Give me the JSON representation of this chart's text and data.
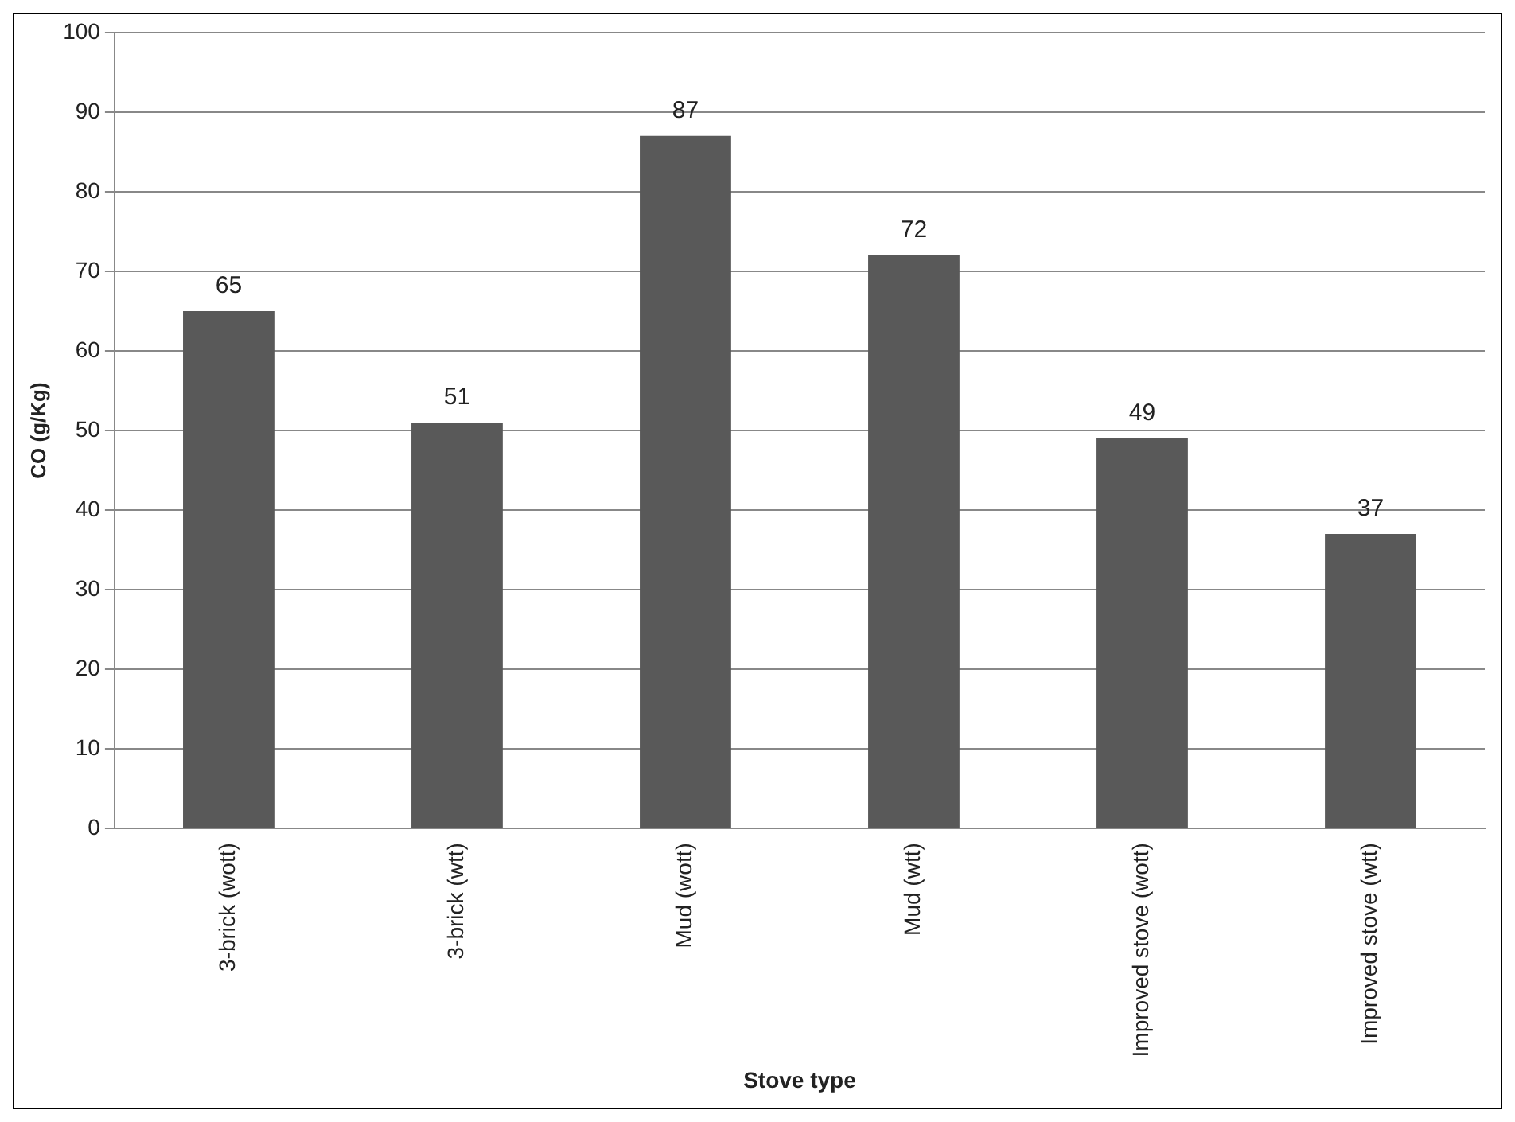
{
  "chart_data": {
    "type": "bar",
    "xlabel": "Stove type",
    "ylabel": "CO (g/Kg)",
    "categories": [
      "3-brick (wott)",
      "3-brick (wtt)",
      "Mud (wott)",
      "Mud (wtt)",
      "Improved stove (wott)",
      "Improved stove (wtt)"
    ],
    "values": [
      65,
      51,
      87,
      72,
      49,
      37
    ],
    "color": "#595959",
    "ylim": [
      0,
      100
    ],
    "yticks": [
      0,
      10,
      20,
      30,
      40,
      50,
      60,
      70,
      80,
      90,
      100
    ],
    "grid": "y",
    "data_labels": true,
    "legend": false
  }
}
